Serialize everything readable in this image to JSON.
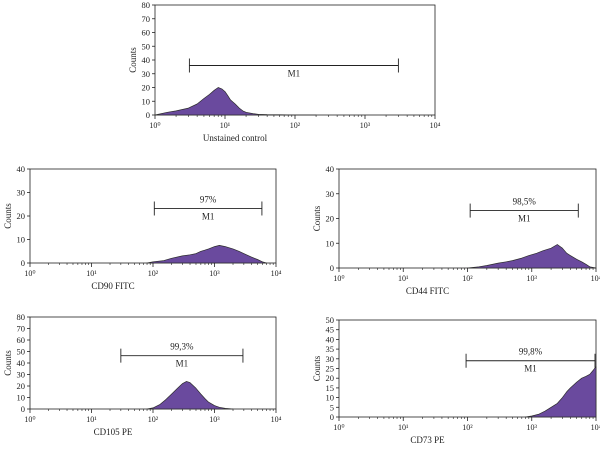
{
  "colors": {
    "fill": "#6a4a9e",
    "outline": "#2d2d2d",
    "axis": "#222222",
    "marker": "#222222"
  },
  "chart_data": [
    {
      "type": "area",
      "scale": "log",
      "xlabel": "Unstained control",
      "ylabel": "Counts",
      "xlim": [
        1,
        10000
      ],
      "ylim": [
        0,
        80
      ],
      "yticks": [
        0,
        10,
        20,
        30,
        40,
        50,
        60,
        70,
        80
      ],
      "xticks": [
        "10⁰",
        "10¹",
        "10²",
        "10³",
        "10⁴"
      ],
      "marker": {
        "label": "M1",
        "percent": "",
        "x_range": [
          3.1,
          3000
        ]
      },
      "series": [
        {
          "x": [
            1,
            1.5,
            2,
            3,
            4,
            5,
            6,
            7,
            8,
            9,
            10,
            11,
            12,
            14,
            16,
            18,
            20,
            25,
            30,
            40,
            60,
            100,
            200
          ],
          "y": [
            0,
            2,
            3,
            5,
            8,
            12,
            15,
            18,
            20,
            19,
            17,
            14,
            11,
            8,
            5,
            3,
            2,
            1,
            0.5,
            0.3,
            0.2,
            0,
            0
          ]
        }
      ]
    },
    {
      "type": "area",
      "scale": "log",
      "xlabel": "CD90 FITC",
      "ylabel": "Counts",
      "xlim": [
        1,
        10000
      ],
      "ylim": [
        0,
        40
      ],
      "yticks": [
        0,
        10,
        20,
        30,
        40
      ],
      "xticks": [
        "10⁰",
        "10¹",
        "10²",
        "10³",
        "10⁴"
      ],
      "marker": {
        "label": "M1",
        "percent": "97%",
        "x_range": [
          105,
          5900
        ]
      },
      "series": [
        {
          "x": [
            80,
            100,
            150,
            200,
            300,
            400,
            500,
            600,
            700,
            800,
            1000,
            1200,
            1500,
            2000,
            2500,
            3000,
            4000,
            5000,
            6000,
            7000
          ],
          "y": [
            0,
            0.5,
            1,
            2,
            3,
            3.5,
            4,
            5,
            5.5,
            6,
            7,
            7.5,
            7,
            6,
            5,
            4,
            2.5,
            1.5,
            0.5,
            0
          ]
        }
      ]
    },
    {
      "type": "area",
      "scale": "log",
      "xlabel": "CD44 FITC",
      "ylabel": "Counts",
      "xlim": [
        1,
        10000
      ],
      "ylim": [
        0,
        40
      ],
      "yticks": [
        0,
        10,
        20,
        30,
        40
      ],
      "xticks": [
        "10⁰",
        "10¹",
        "10²",
        "10³",
        "10⁴"
      ],
      "marker": {
        "label": "M1",
        "percent": "98,5%",
        "x_range": [
          110,
          5300
        ]
      },
      "series": [
        {
          "x": [
            100,
            150,
            200,
            300,
            400,
            500,
            700,
            900,
            1200,
            1500,
            2000,
            2500,
            3000,
            3500,
            4000,
            5000,
            6000,
            7000,
            8000,
            10000
          ],
          "y": [
            0,
            0.5,
            1,
            2,
            2.5,
            3,
            4,
            5,
            6,
            7,
            8,
            9.5,
            8,
            6,
            5,
            3.5,
            2.5,
            1.5,
            0.5,
            0
          ]
        }
      ]
    },
    {
      "type": "area",
      "scale": "log",
      "xlabel": "CD105 PE",
      "ylabel": "Counts",
      "xlim": [
        1,
        10000
      ],
      "ylim": [
        0,
        80
      ],
      "yticks": [
        0,
        10,
        20,
        30,
        40,
        50,
        60,
        70,
        80
      ],
      "xticks": [
        "10⁰",
        "10¹",
        "10²",
        "10³",
        "10⁴"
      ],
      "marker": {
        "label": "M1",
        "percent": "99,3%",
        "x_range": [
          30,
          2900
        ]
      },
      "series": [
        {
          "x": [
            80,
            100,
            130,
            160,
            200,
            250,
            300,
            350,
            400,
            500,
            600,
            700,
            800,
            1000,
            1200,
            1500,
            2000
          ],
          "y": [
            0,
            1,
            4,
            8,
            13,
            18,
            22,
            24,
            23,
            18,
            13,
            9,
            6,
            3,
            1.5,
            0.5,
            0
          ]
        }
      ]
    },
    {
      "type": "area",
      "scale": "log",
      "xlabel": "CD73 PE",
      "ylabel": "Counts",
      "xlim": [
        1,
        10000
      ],
      "ylim": [
        0,
        50
      ],
      "yticks": [
        0,
        5,
        10,
        15,
        20,
        25,
        30,
        35,
        40,
        45,
        50
      ],
      "xticks": [
        "10⁰",
        "10¹",
        "10²",
        "10³",
        "10⁴"
      ],
      "marker": {
        "label": "M1",
        "percent": "99,8%",
        "x_range": [
          95,
          10000
        ]
      },
      "series": [
        {
          "x": [
            800,
            1000,
            1300,
            1600,
            2000,
            2500,
            3000,
            3500,
            4000,
            5000,
            6000,
            7000,
            8000,
            9000,
            10000
          ],
          "y": [
            0,
            0.5,
            1.5,
            3,
            5,
            7,
            10,
            13,
            15,
            18,
            20,
            21,
            22,
            24,
            26
          ]
        }
      ]
    }
  ]
}
